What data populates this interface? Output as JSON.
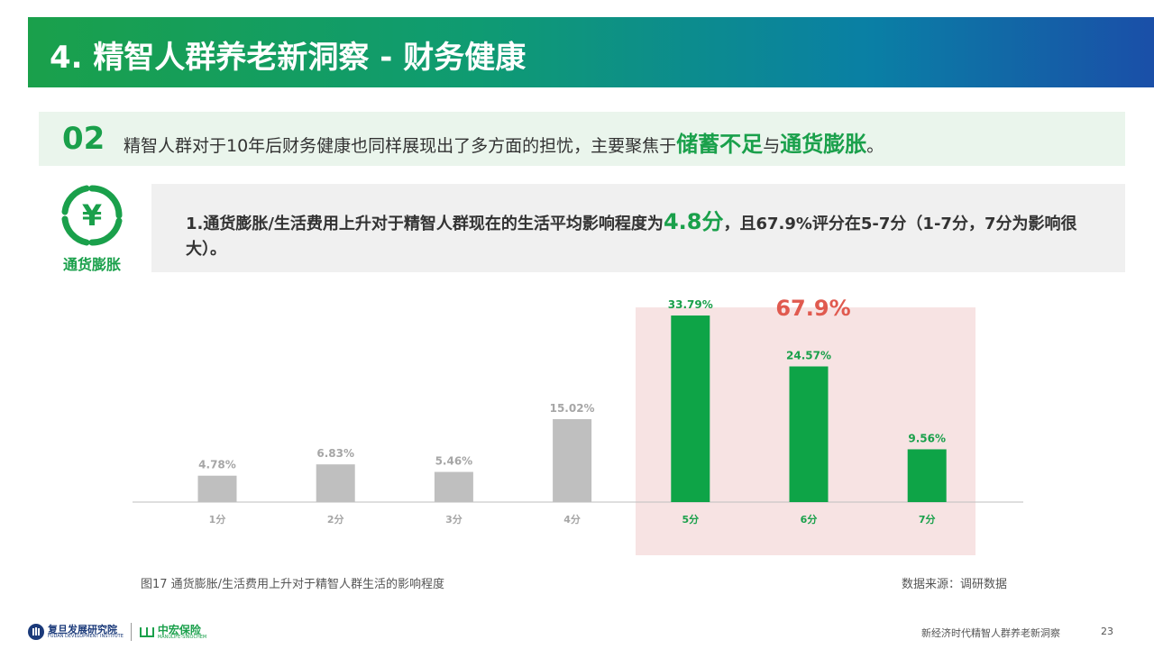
{
  "header": {
    "title": "4. 精智人群养老新洞察 - 财务健康"
  },
  "subtitle": {
    "number": "02",
    "text_before": "精智人群对于10年后财务健康也同样展现出了多方面的担忧，主要聚焦于",
    "highlight1": "储蓄不足",
    "connector": "与",
    "highlight2": "通货膨胀",
    "text_after": "。"
  },
  "icon": {
    "name": "yen-icon",
    "glyph": "¥",
    "label": "通货膨胀"
  },
  "note": {
    "before": "1.通货膨胀/生活费用上升对于精智人群现在的生活平均影响程度为",
    "highlight": "4.8分",
    "after": "，且67.9%评分在5-7分（1-7分，7分为影响很大）。"
  },
  "chart_data": {
    "type": "bar",
    "categories": [
      "1分",
      "2分",
      "3分",
      "4分",
      "5分",
      "6分",
      "7分"
    ],
    "values": [
      4.78,
      6.83,
      5.46,
      15.02,
      33.79,
      24.57,
      9.56
    ],
    "value_labels": [
      "4.78%",
      "6.83%",
      "5.46%",
      "15.02%",
      "33.79%",
      "24.57%",
      "9.56%"
    ],
    "highlighted_categories": [
      "5分",
      "6分",
      "7分"
    ],
    "highlight_total": "67.9%",
    "colors": {
      "normal": "#bfbfbf",
      "highlight": "#0ea447",
      "normal_label": "#a6a6a6",
      "highlight_label": "#1aa04b",
      "total_label": "#e05a4f"
    },
    "ylim": [
      0,
      40
    ],
    "title": "",
    "xlabel": "",
    "ylabel": ""
  },
  "caption": "图17 通货膨胀/生活费用上升对于精智人群生活的影响程度",
  "source": "数据来源：调研数据",
  "footer": {
    "logo1_cn": "复旦发展研究院",
    "logo1_en": "FUDAN DEVELOPMENT INSTITUTE",
    "logo2_cn": "中宏保险",
    "logo2_en": "MANULIFE-SINOCHEM",
    "title": "新经济时代精智人群养老新洞察",
    "page": "23"
  }
}
